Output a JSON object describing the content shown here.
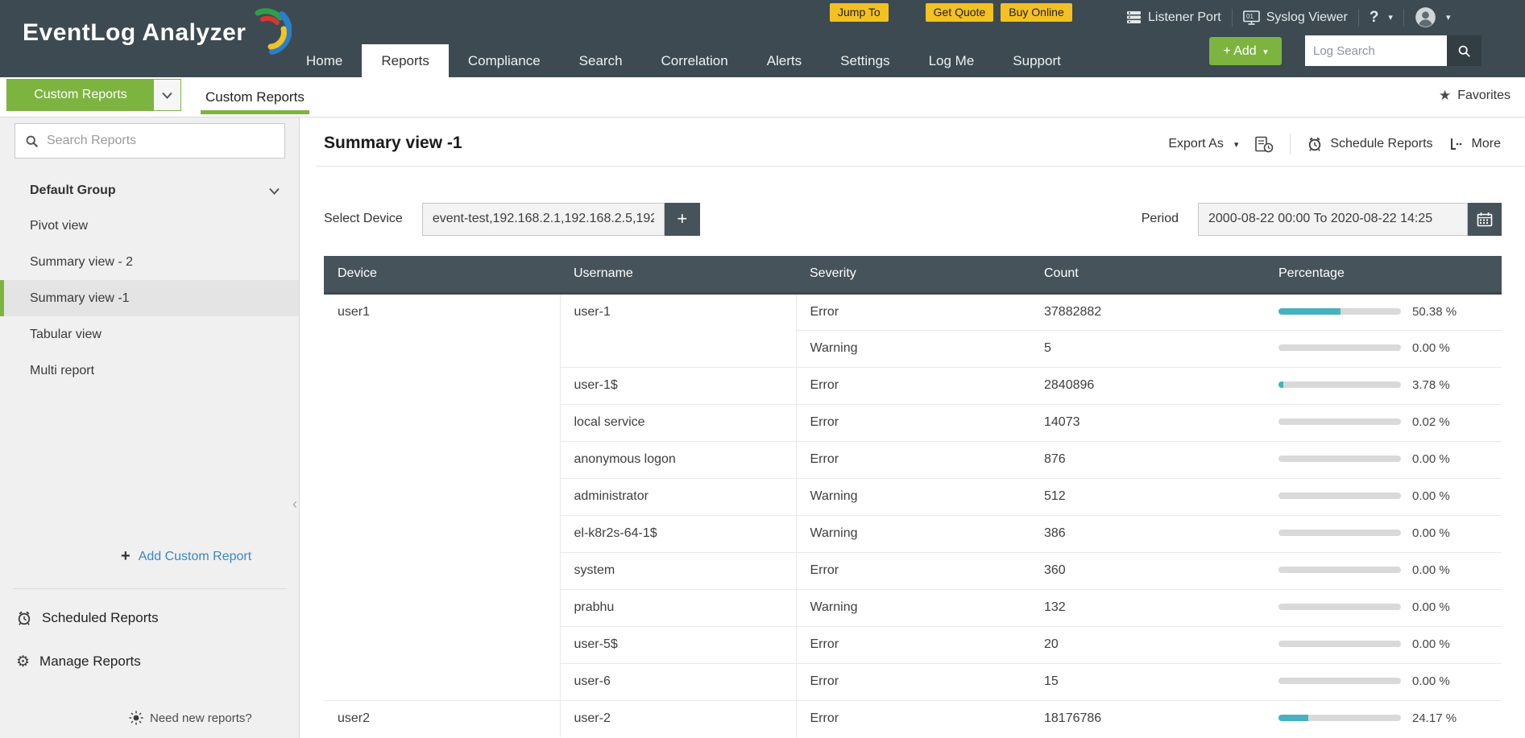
{
  "header": {
    "logo_text": "EventLog Analyzer",
    "nav": [
      {
        "label": "Home",
        "active": false
      },
      {
        "label": "Reports",
        "active": true
      },
      {
        "label": "Compliance",
        "active": false
      },
      {
        "label": "Search",
        "active": false
      },
      {
        "label": "Correlation",
        "active": false
      },
      {
        "label": "Alerts",
        "active": false
      },
      {
        "label": "Settings",
        "active": false
      },
      {
        "label": "Log Me",
        "active": false
      },
      {
        "label": "Support",
        "active": false
      }
    ],
    "promo_buttons": [
      "Jump To",
      "Get Quote",
      "Buy Online"
    ],
    "listener_port_label": "Listener Port",
    "syslog_viewer_label": "Syslog Viewer",
    "help_label": "?",
    "add_button_label": "+ Add",
    "log_search_placeholder": "Log Search"
  },
  "toolbar": {
    "group_dropdown_label": "Custom Reports",
    "tab_label": "Custom Reports",
    "favorites_label": "Favorites"
  },
  "sidebar": {
    "search_placeholder": "Search Reports",
    "group_label": "Default Group",
    "items": [
      {
        "label": "Pivot view",
        "selected": false
      },
      {
        "label": "Summary view - 2",
        "selected": false
      },
      {
        "label": "Summary view -1",
        "selected": true
      },
      {
        "label": "Tabular view",
        "selected": false
      },
      {
        "label": "Multi report",
        "selected": false
      }
    ],
    "add_custom_report_label": "Add Custom Report",
    "scheduled_reports_label": "Scheduled Reports",
    "manage_reports_label": "Manage Reports",
    "need_new_reports_label": "Need new reports?"
  },
  "main": {
    "title": "Summary view -1",
    "export_as_label": "Export As",
    "schedule_reports_label": "Schedule Reports",
    "more_label": "More",
    "select_device_label": "Select Device",
    "select_device_value": "event-test,192.168.2.1,192.168.2.5,192",
    "add_device_button_label": "+",
    "period_label": "Period",
    "period_value": "2000-08-22 00:00 To 2020-08-22 14:25"
  },
  "table": {
    "columns": [
      "Device",
      "Username",
      "Severity",
      "Count",
      "Percentage"
    ],
    "groups": [
      {
        "device": "user1",
        "users": [
          {
            "username": "user-1",
            "rows": [
              {
                "severity": "Error",
                "count": "37882882",
                "pct": 50.38,
                "pct_label": "50.38 %"
              },
              {
                "severity": "Warning",
                "count": "5",
                "pct": 0,
                "pct_label": "0.00 %"
              }
            ]
          },
          {
            "username": "user-1$",
            "rows": [
              {
                "severity": "Error",
                "count": "2840896",
                "pct": 3.78,
                "pct_label": "3.78 %"
              }
            ]
          },
          {
            "username": "local service",
            "rows": [
              {
                "severity": "Error",
                "count": "14073",
                "pct": 0.02,
                "pct_label": "0.02 %"
              }
            ]
          },
          {
            "username": "anonymous logon",
            "rows": [
              {
                "severity": "Error",
                "count": "876",
                "pct": 0,
                "pct_label": "0.00 %"
              }
            ]
          },
          {
            "username": "administrator",
            "rows": [
              {
                "severity": "Warning",
                "count": "512",
                "pct": 0,
                "pct_label": "0.00 %"
              }
            ]
          },
          {
            "username": "el-k8r2s-64-1$",
            "rows": [
              {
                "severity": "Warning",
                "count": "386",
                "pct": 0,
                "pct_label": "0.00 %"
              }
            ]
          },
          {
            "username": "system",
            "rows": [
              {
                "severity": "Error",
                "count": "360",
                "pct": 0,
                "pct_label": "0.00 %"
              }
            ]
          },
          {
            "username": "prabhu",
            "rows": [
              {
                "severity": "Warning",
                "count": "132",
                "pct": 0,
                "pct_label": "0.00 %"
              }
            ]
          },
          {
            "username": "user-5$",
            "rows": [
              {
                "severity": "Error",
                "count": "20",
                "pct": 0,
                "pct_label": "0.00 %"
              }
            ]
          },
          {
            "username": "user-6",
            "rows": [
              {
                "severity": "Error",
                "count": "15",
                "pct": 0,
                "pct_label": "0.00 %"
              }
            ]
          }
        ]
      },
      {
        "device": "user2",
        "users": [
          {
            "username": "user-2",
            "rows": [
              {
                "severity": "Error",
                "count": "18176786",
                "pct": 24.17,
                "pct_label": "24.17 %"
              }
            ]
          }
        ]
      }
    ]
  },
  "colors": {
    "header_bg": "#3d4a52",
    "accent_green": "#7db440",
    "promo_yellow": "#f3c121",
    "table_header_bg": "#47535b",
    "bar_teal": "#46b2c1",
    "bar_track": "#d9d9d9",
    "link_blue": "#3b86c4",
    "sidebar_bg": "#f0f0f0",
    "selected_item_bg": "#e4e4e4"
  }
}
